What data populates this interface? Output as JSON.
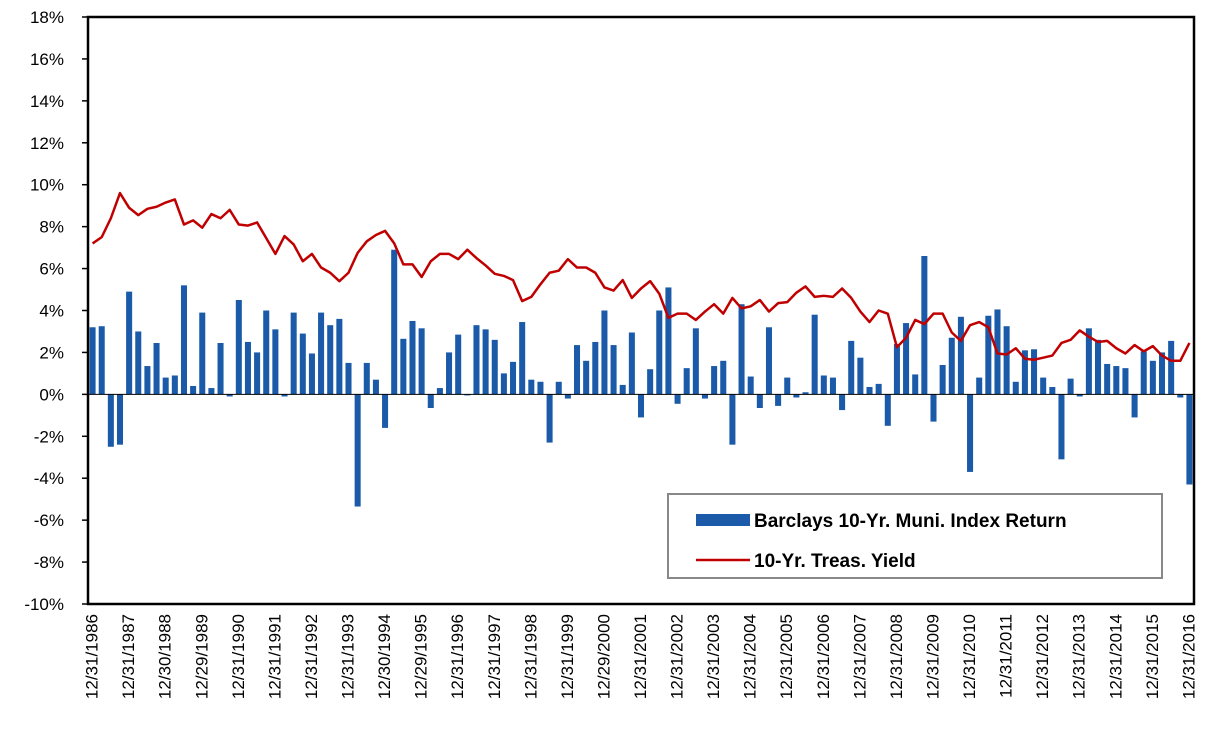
{
  "chart_data": {
    "type": "bar",
    "categories": [
      "12/31/1986",
      null,
      null,
      null,
      "12/31/1987",
      null,
      null,
      null,
      "12/30/1988",
      null,
      null,
      null,
      "12/29/1989",
      null,
      null,
      null,
      "12/31/1990",
      null,
      null,
      null,
      "12/31/1991",
      null,
      null,
      null,
      "12/31/1992",
      null,
      null,
      null,
      "12/31/1993",
      null,
      null,
      null,
      "12/30/1994",
      null,
      null,
      null,
      "12/29/1995",
      null,
      null,
      null,
      "12/31/1996",
      null,
      null,
      null,
      "12/31/1997",
      null,
      null,
      null,
      "12/31/1998",
      null,
      null,
      null,
      "12/31/1999",
      null,
      null,
      null,
      "12/29/2000",
      null,
      null,
      null,
      "12/31/2001",
      null,
      null,
      null,
      "12/31/2002",
      null,
      null,
      null,
      "12/31/2003",
      null,
      null,
      null,
      "12/31/2004",
      null,
      null,
      null,
      "12/31/2005",
      null,
      null,
      null,
      "12/31/2006",
      null,
      null,
      null,
      "12/31/2007",
      null,
      null,
      null,
      "12/31/2008",
      null,
      null,
      null,
      "12/31/2009",
      null,
      null,
      null,
      "12/31/2010",
      null,
      null,
      null,
      "12/31/2011",
      null,
      null,
      null,
      "12/31/2012",
      null,
      null,
      null,
      "12/31/2013",
      null,
      null,
      null,
      "12/31/2014",
      null,
      null,
      null,
      "12/31/2015",
      null,
      null,
      null,
      "12/31/2016"
    ],
    "series": [
      {
        "name": "Barclays 10-Yr. Muni. Index Return",
        "type": "bar",
        "color": "#1a5aa8",
        "values": [
          3.2,
          3.25,
          -2.5,
          -2.4,
          4.9,
          3.0,
          1.35,
          2.45,
          0.8,
          0.9,
          5.2,
          0.4,
          3.9,
          0.3,
          2.45,
          -0.1,
          4.5,
          2.5,
          2.0,
          4.0,
          3.1,
          -0.1,
          3.9,
          2.9,
          1.95,
          3.9,
          3.3,
          3.6,
          1.5,
          -5.35,
          1.5,
          0.7,
          -1.6,
          6.9,
          2.65,
          3.5,
          3.15,
          -0.65,
          0.3,
          2.0,
          2.85,
          -0.05,
          3.3,
          3.1,
          2.6,
          1.0,
          1.55,
          3.45,
          0.7,
          0.6,
          -2.3,
          0.6,
          -0.2,
          2.35,
          1.6,
          2.5,
          4.0,
          2.35,
          0.45,
          2.95,
          -1.1,
          1.2,
          4.0,
          5.1,
          -0.45,
          1.25,
          3.15,
          -0.2,
          1.35,
          1.6,
          -2.4,
          4.3,
          0.85,
          -0.65,
          3.2,
          -0.55,
          0.8,
          -0.15,
          0.1,
          3.8,
          0.9,
          0.8,
          -0.75,
          2.55,
          1.75,
          0.35,
          0.5,
          -1.5,
          2.4,
          3.4,
          0.95,
          6.6,
          -1.3,
          1.4,
          2.7,
          3.7,
          -3.7,
          0.8,
          3.75,
          4.05,
          3.25,
          0.6,
          2.1,
          2.15,
          0.8,
          0.35,
          -3.1,
          0.75,
          -0.1,
          3.15,
          2.6,
          1.45,
          1.35,
          1.25,
          -1.1,
          2.05,
          1.6,
          2.0,
          2.55,
          -0.15,
          -4.3
        ]
      },
      {
        "name": "10-Yr. Treas. Yield",
        "type": "line",
        "color": "#c00000",
        "values": [
          7.2,
          7.5,
          8.4,
          9.6,
          8.9,
          8.55,
          8.85,
          8.95,
          9.15,
          9.3,
          8.1,
          8.3,
          7.95,
          8.6,
          8.4,
          8.8,
          8.1,
          8.05,
          8.2,
          7.45,
          6.7,
          7.55,
          7.15,
          6.35,
          6.7,
          6.05,
          5.8,
          5.4,
          5.8,
          6.75,
          7.3,
          7.6,
          7.8,
          7.2,
          6.2,
          6.2,
          5.6,
          6.35,
          6.7,
          6.7,
          6.45,
          6.9,
          6.5,
          6.15,
          5.75,
          5.65,
          5.45,
          4.45,
          4.65,
          5.25,
          5.8,
          5.9,
          6.45,
          6.05,
          6.05,
          5.8,
          5.1,
          4.95,
          5.45,
          4.6,
          5.05,
          5.4,
          4.8,
          3.65,
          3.85,
          3.85,
          3.55,
          3.95,
          4.3,
          3.85,
          4.6,
          4.1,
          4.2,
          4.5,
          3.95,
          4.35,
          4.4,
          4.85,
          5.15,
          4.65,
          4.7,
          4.65,
          5.05,
          4.6,
          3.95,
          3.45,
          4.0,
          3.85,
          2.25,
          2.7,
          3.55,
          3.35,
          3.85,
          3.85,
          2.95,
          2.55,
          3.3,
          3.45,
          3.2,
          1.95,
          1.9,
          2.2,
          1.7,
          1.65,
          1.75,
          1.85,
          2.45,
          2.6,
          3.05,
          2.75,
          2.5,
          2.55,
          2.2,
          1.95,
          2.35,
          2.05,
          2.3,
          1.85,
          1.6,
          1.6,
          2.45
        ]
      }
    ],
    "ylim": [
      -10,
      18
    ],
    "yticks": [
      {
        "value": -10,
        "label": "-10%"
      },
      {
        "value": -8,
        "label": "-8%"
      },
      {
        "value": -6,
        "label": "-6%"
      },
      {
        "value": -4,
        "label": "-4%"
      },
      {
        "value": -2,
        "label": "-2%"
      },
      {
        "value": 0,
        "label": "0%"
      },
      {
        "value": 2,
        "label": "2%"
      },
      {
        "value": 4,
        "label": "4%"
      },
      {
        "value": 6,
        "label": "6%"
      },
      {
        "value": 8,
        "label": "8%"
      },
      {
        "value": 10,
        "label": "10%"
      },
      {
        "value": 12,
        "label": "12%"
      },
      {
        "value": 14,
        "label": "14%"
      },
      {
        "value": 16,
        "label": "16%"
      },
      {
        "value": 18,
        "label": "18%"
      }
    ],
    "grid": false,
    "legend": "lower right"
  }
}
